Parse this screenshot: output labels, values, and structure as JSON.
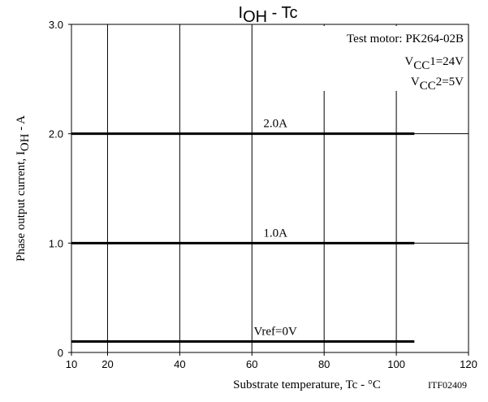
{
  "chart_data": {
    "type": "line",
    "title": {
      "main": "I",
      "sub": "OH",
      "rest": " - Tc"
    },
    "x_label": "Substrate temperature, Tc - °C",
    "y_label": {
      "main": "Phase output current, I",
      "sub": "OH",
      "rest": " - A"
    },
    "annotations": {
      "motor": "Test motor: PK264-02B",
      "vcc1": {
        "main": "V",
        "sub": "CC",
        "rest": "1=24V"
      },
      "vcc2": {
        "main": "V",
        "sub": "CC",
        "rest": "2=5V"
      },
      "code": "ITF02409"
    },
    "series": [
      {
        "name": "2.0A",
        "color": "#000000",
        "x": [
          10,
          105
        ],
        "values": [
          2,
          2
        ]
      },
      {
        "name": "1.0A",
        "color": "#000000",
        "x": [
          10,
          105
        ],
        "values": [
          1,
          1
        ]
      },
      {
        "name": "Vref=0V",
        "color": "#000000",
        "x": [
          10,
          105
        ],
        "values": [
          0.1,
          0.1
        ]
      }
    ],
    "xlim": [
      10,
      120
    ],
    "xticks": [
      10,
      20,
      40,
      60,
      80,
      100,
      120
    ],
    "ylim": [
      0,
      3
    ],
    "yticks": [
      0,
      {
        "value": 1,
        "label": "1.0"
      },
      {
        "value": 2,
        "label": "2.0"
      },
      {
        "value": 3,
        "label": "3.0"
      }
    ],
    "x_grid": [
      20,
      40,
      60,
      80,
      100
    ],
    "y_grid": [
      1,
      2
    ]
  }
}
